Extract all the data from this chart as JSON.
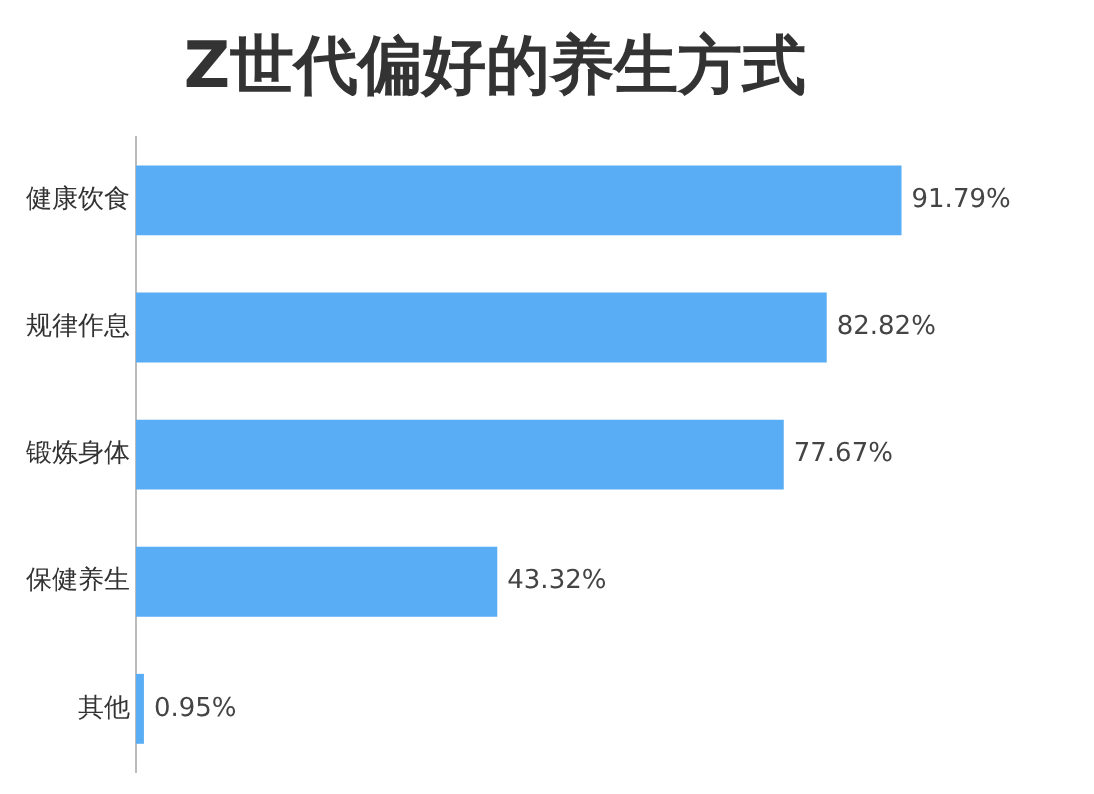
{
  "chart_data": {
    "type": "bar",
    "orientation": "horizontal",
    "title": "Z世代偏好的养生方式",
    "categories": [
      "健康饮食",
      "规律作息",
      "锻炼身体",
      "保健养生",
      "其他"
    ],
    "values": [
      91.79,
      82.82,
      77.67,
      43.32,
      0.95
    ],
    "value_labels": [
      "91.79%",
      "82.82%",
      "77.67%",
      "43.32%",
      "0.95%"
    ],
    "color": "#58adf5",
    "tick_labels": "y"
  }
}
